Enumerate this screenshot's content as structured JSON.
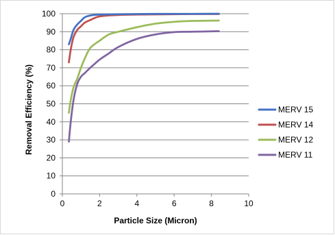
{
  "chart_data": {
    "type": "line",
    "title": "",
    "xlabel": "Particle Size (Micron)",
    "ylabel": "Removal Efficiency (%)",
    "xlim": [
      0,
      10
    ],
    "ylim": [
      0,
      100
    ],
    "xticks": [
      0,
      2,
      4,
      6,
      8,
      10
    ],
    "yticks": [
      0,
      10,
      20,
      30,
      40,
      50,
      60,
      70,
      80,
      90,
      100
    ],
    "grid": "horizontal major gridlines",
    "legend_position": "right",
    "series": [
      {
        "name": "MERV 15",
        "color": "#4472C4",
        "points": [
          [
            0.35,
            83
          ],
          [
            0.45,
            86
          ],
          [
            0.6,
            91
          ],
          [
            0.8,
            94
          ],
          [
            1.0,
            96
          ],
          [
            1.2,
            98
          ],
          [
            1.5,
            99
          ],
          [
            2.0,
            99.5
          ],
          [
            3.0,
            99.7
          ],
          [
            4.0,
            99.8
          ],
          [
            5.0,
            99.9
          ],
          [
            6.0,
            99.9
          ],
          [
            7.0,
            99.9
          ],
          [
            8.4,
            100
          ]
        ]
      },
      {
        "name": "MERV 14",
        "color": "#C0504D",
        "points": [
          [
            0.35,
            73
          ],
          [
            0.45,
            80
          ],
          [
            0.6,
            87
          ],
          [
            0.8,
            91
          ],
          [
            1.0,
            93
          ],
          [
            1.2,
            95
          ],
          [
            1.5,
            96.5
          ],
          [
            2.0,
            98.5
          ],
          [
            3.0,
            99.3
          ],
          [
            4.0,
            99.5
          ],
          [
            5.0,
            99.6
          ],
          [
            6.0,
            99.7
          ],
          [
            7.0,
            99.8
          ],
          [
            8.4,
            99.8
          ]
        ]
      },
      {
        "name": "MERV 12",
        "color": "#9BBB59",
        "points": [
          [
            0.35,
            45
          ],
          [
            0.45,
            52
          ],
          [
            0.6,
            59
          ],
          [
            0.8,
            64
          ],
          [
            1.0,
            70
          ],
          [
            1.2,
            75
          ],
          [
            1.5,
            81
          ],
          [
            2.0,
            85
          ],
          [
            2.5,
            88.5
          ],
          [
            3.0,
            90
          ],
          [
            4.0,
            92.5
          ],
          [
            5.0,
            94.5
          ],
          [
            6.0,
            95.5
          ],
          [
            7.0,
            96
          ],
          [
            8.4,
            96.2
          ]
        ]
      },
      {
        "name": "MERV 11",
        "color": "#8064A2",
        "points": [
          [
            0.35,
            29
          ],
          [
            0.45,
            40
          ],
          [
            0.6,
            52
          ],
          [
            0.8,
            61
          ],
          [
            1.0,
            65
          ],
          [
            1.2,
            67
          ],
          [
            1.5,
            70
          ],
          [
            2.0,
            74.5
          ],
          [
            2.5,
            78
          ],
          [
            3.0,
            81.5
          ],
          [
            4.0,
            86
          ],
          [
            5.0,
            88.5
          ],
          [
            6.0,
            89.8
          ],
          [
            7.0,
            90
          ],
          [
            8.4,
            90.3
          ]
        ]
      }
    ]
  }
}
